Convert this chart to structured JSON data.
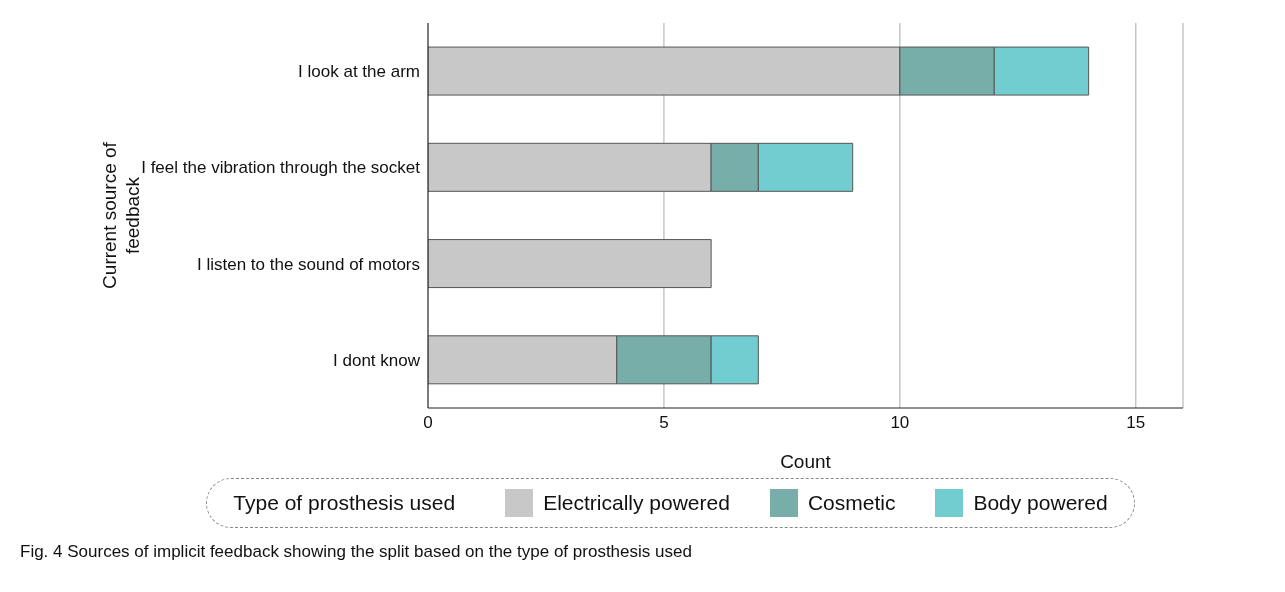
{
  "chart_data": {
    "type": "bar",
    "orientation": "horizontal",
    "stacked": true,
    "categories": [
      "I look at the arm",
      "I feel the vibration through the socket",
      "I listen to the sound of motors",
      "I dont know"
    ],
    "series": [
      {
        "name": "Electrically powered",
        "color": "#c8c8c8",
        "values": [
          10,
          6,
          6,
          4
        ]
      },
      {
        "name": "Cosmetic",
        "color": "#78aeaa",
        "values": [
          2,
          1,
          0,
          2
        ]
      },
      {
        "name": "Body powered",
        "color": "#72cdd1",
        "values": [
          2,
          2,
          0,
          1
        ]
      }
    ],
    "xlim": [
      0,
      16
    ],
    "xticks": [
      0,
      5,
      10,
      15
    ],
    "grid": "x",
    "xlabel": "Count",
    "ylabel": "Current source of feedback",
    "legend_title": "Type of prosthesis used",
    "legend": "bottom",
    "annotations": [
      "Fig. 4 Sources of implicit feedback showing the split based on the type of prosthesis used"
    ]
  }
}
